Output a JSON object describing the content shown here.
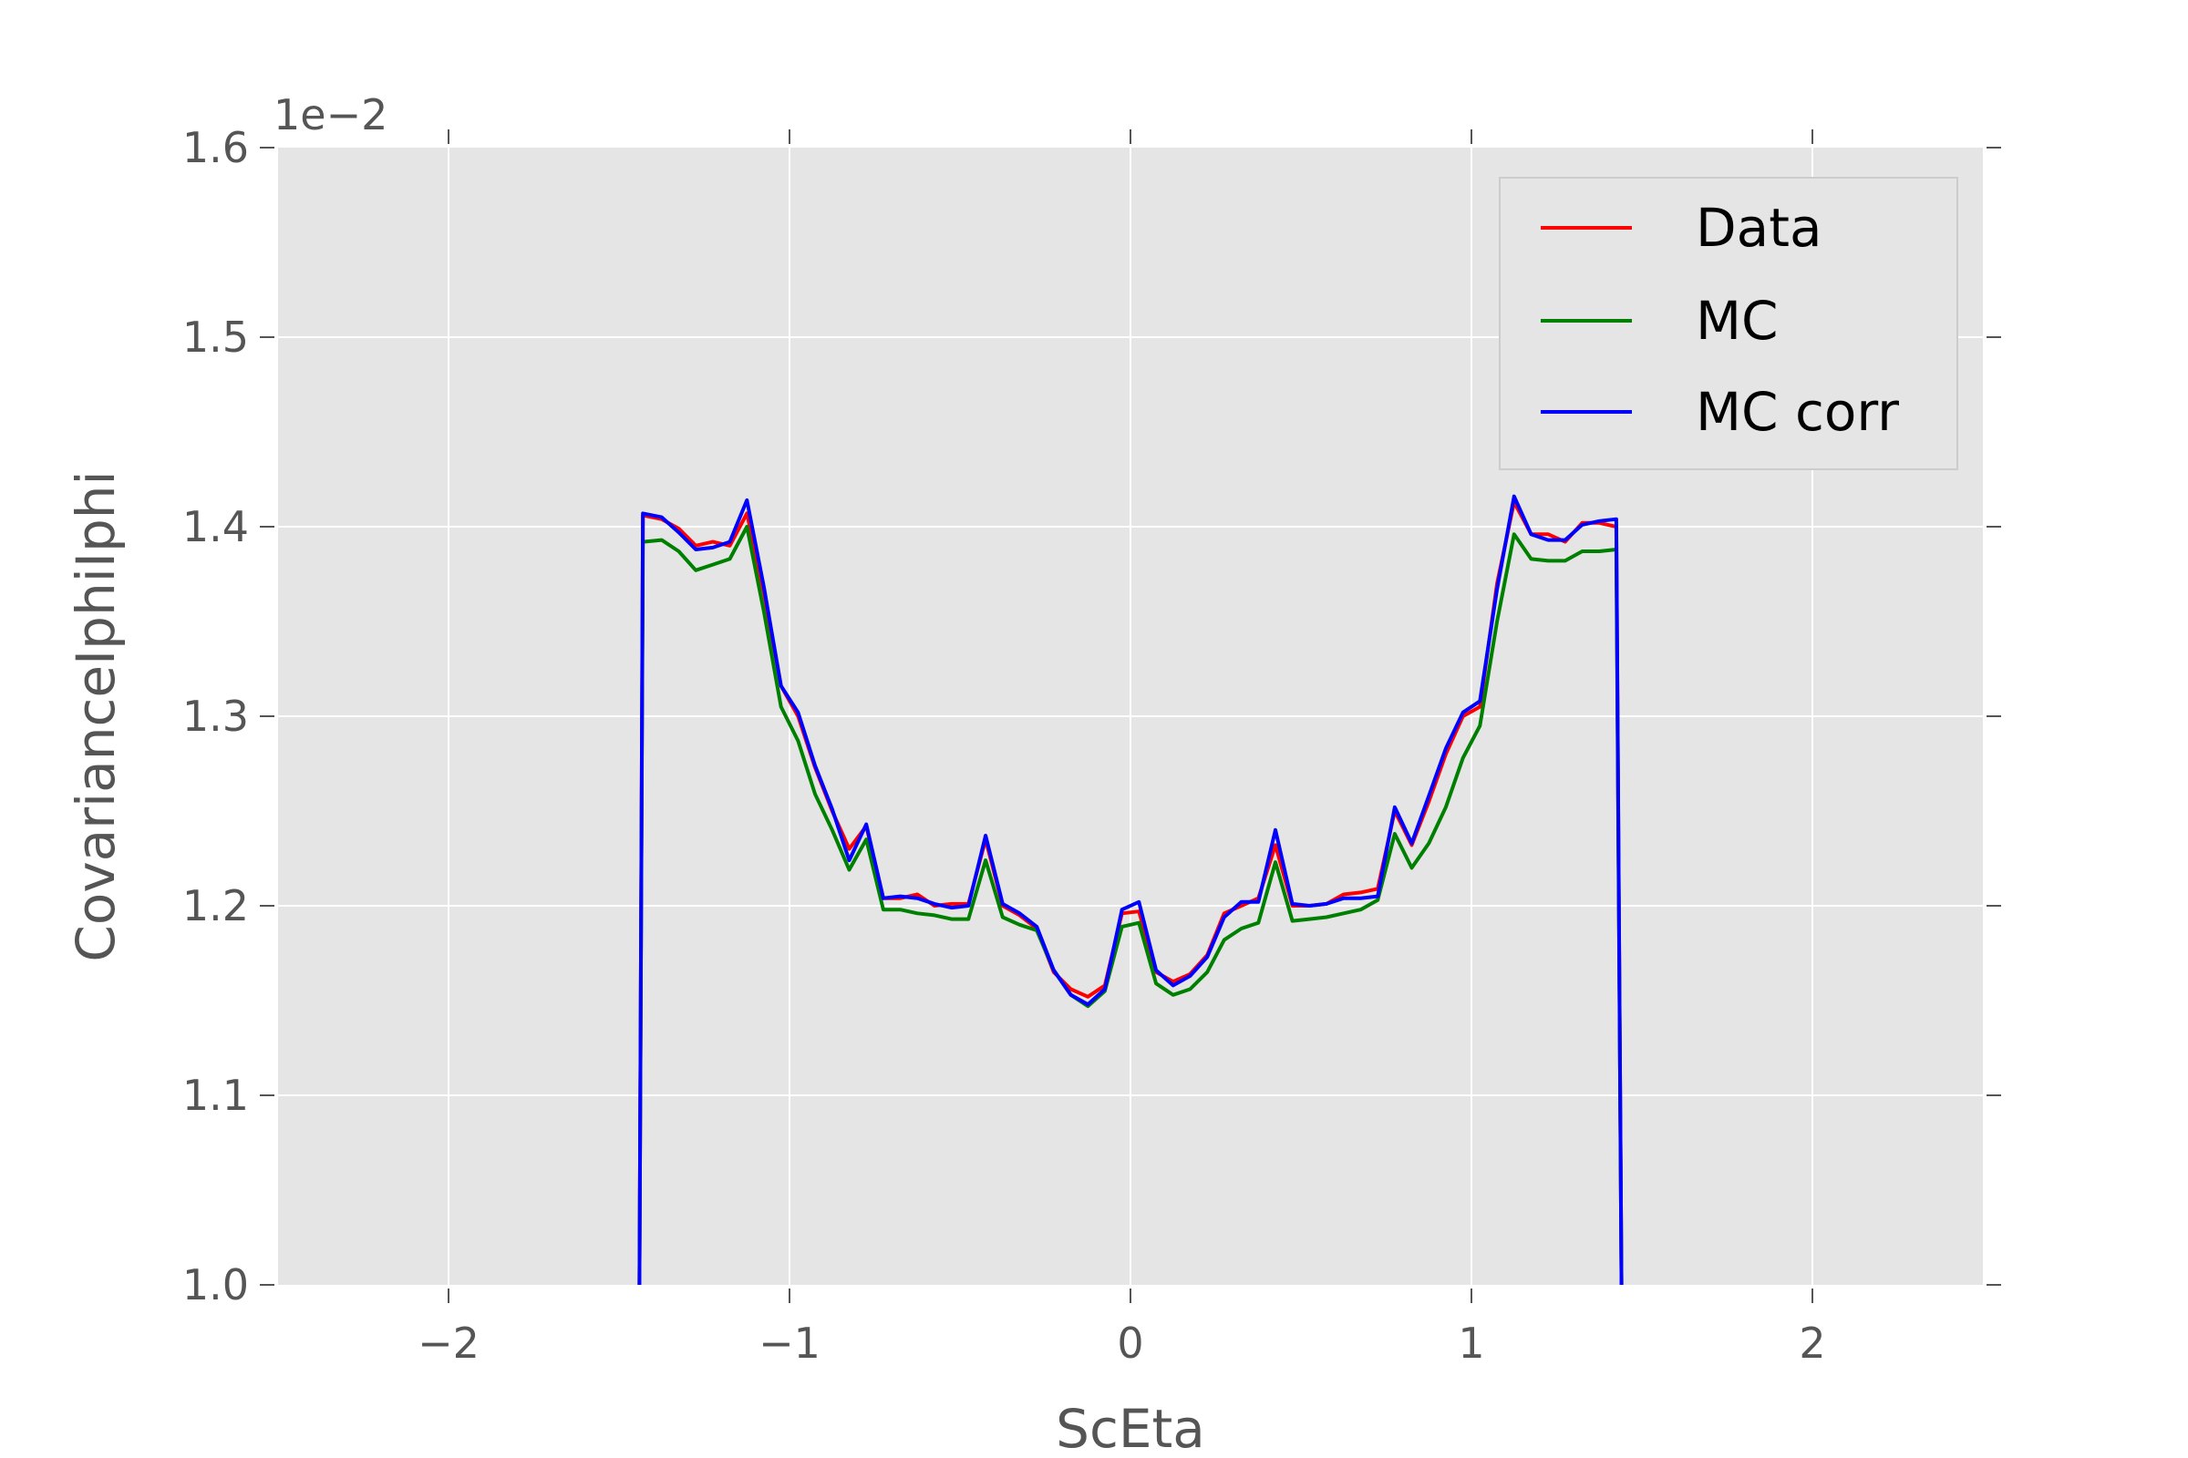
{
  "chart_data": {
    "type": "line",
    "xlabel": "ScEta",
    "ylabel": "CovarianceIphiIphi",
    "offset_label": "1e−2",
    "xlim": [
      -2.5,
      2.5
    ],
    "ylim": [
      1.0,
      1.6
    ],
    "xticks": [
      -2,
      -1,
      0,
      1,
      2
    ],
    "xtick_labels": [
      "−2",
      "−1",
      "0",
      "1",
      "2"
    ],
    "yticks": [
      1.0,
      1.1,
      1.2,
      1.3,
      1.4,
      1.5,
      1.6
    ],
    "ytick_labels": [
      "1.0",
      "1.1",
      "1.2",
      "1.3",
      "1.4",
      "1.5",
      "1.6"
    ],
    "grid": true,
    "legend_position": "top-right",
    "x": [
      -1.44,
      -1.43,
      -1.375,
      -1.325,
      -1.275,
      -1.225,
      -1.175,
      -1.125,
      -1.075,
      -1.025,
      -0.975,
      -0.925,
      -0.875,
      -0.825,
      -0.775,
      -0.725,
      -0.675,
      -0.625,
      -0.575,
      -0.525,
      -0.475,
      -0.425,
      -0.375,
      -0.325,
      -0.275,
      -0.225,
      -0.175,
      -0.125,
      -0.075,
      -0.025,
      0.025,
      0.075,
      0.125,
      0.175,
      0.225,
      0.275,
      0.325,
      0.375,
      0.425,
      0.475,
      0.525,
      0.575,
      0.625,
      0.675,
      0.725,
      0.775,
      0.825,
      0.875,
      0.925,
      0.975,
      1.025,
      1.075,
      1.125,
      1.175,
      1.225,
      1.275,
      1.325,
      1.375,
      1.425,
      1.44
    ],
    "series": [
      {
        "name": "Data",
        "color": "#ff0000",
        "values": [
          1.0,
          1.406,
          1.404,
          1.399,
          1.39,
          1.392,
          1.39,
          1.407,
          1.365,
          1.316,
          1.3,
          1.273,
          1.25,
          1.23,
          1.242,
          1.204,
          1.204,
          1.206,
          1.2,
          1.201,
          1.201,
          1.235,
          1.2,
          1.195,
          1.188,
          1.165,
          1.156,
          1.152,
          1.158,
          1.196,
          1.197,
          1.165,
          1.16,
          1.164,
          1.174,
          1.196,
          1.2,
          1.204,
          1.232,
          1.2,
          1.2,
          1.201,
          1.206,
          1.207,
          1.209,
          1.25,
          1.232,
          1.255,
          1.28,
          1.3,
          1.305,
          1.37,
          1.413,
          1.396,
          1.396,
          1.392,
          1.402,
          1.402,
          1.4,
          1.0
        ]
      },
      {
        "name": "MC",
        "color": "#008000",
        "values": [
          1.0,
          1.392,
          1.393,
          1.387,
          1.377,
          1.38,
          1.383,
          1.4,
          1.355,
          1.305,
          1.287,
          1.259,
          1.24,
          1.219,
          1.235,
          1.198,
          1.198,
          1.196,
          1.195,
          1.193,
          1.193,
          1.224,
          1.194,
          1.19,
          1.187,
          1.166,
          1.153,
          1.147,
          1.155,
          1.189,
          1.191,
          1.159,
          1.153,
          1.156,
          1.165,
          1.182,
          1.188,
          1.191,
          1.223,
          1.192,
          1.193,
          1.194,
          1.196,
          1.198,
          1.203,
          1.238,
          1.22,
          1.233,
          1.252,
          1.278,
          1.295,
          1.35,
          1.396,
          1.383,
          1.382,
          1.382,
          1.387,
          1.387,
          1.388,
          1.0
        ]
      },
      {
        "name": "MC corr",
        "color": "#0000ff",
        "values": [
          1.0,
          1.407,
          1.405,
          1.397,
          1.388,
          1.389,
          1.392,
          1.414,
          1.368,
          1.316,
          1.302,
          1.274,
          1.251,
          1.224,
          1.243,
          1.204,
          1.205,
          1.204,
          1.201,
          1.199,
          1.2,
          1.237,
          1.201,
          1.196,
          1.189,
          1.166,
          1.153,
          1.148,
          1.156,
          1.198,
          1.202,
          1.166,
          1.158,
          1.163,
          1.173,
          1.194,
          1.202,
          1.202,
          1.24,
          1.201,
          1.2,
          1.201,
          1.204,
          1.204,
          1.205,
          1.252,
          1.233,
          1.258,
          1.283,
          1.302,
          1.308,
          1.367,
          1.416,
          1.396,
          1.393,
          1.393,
          1.401,
          1.403,
          1.404,
          1.0
        ]
      }
    ]
  }
}
